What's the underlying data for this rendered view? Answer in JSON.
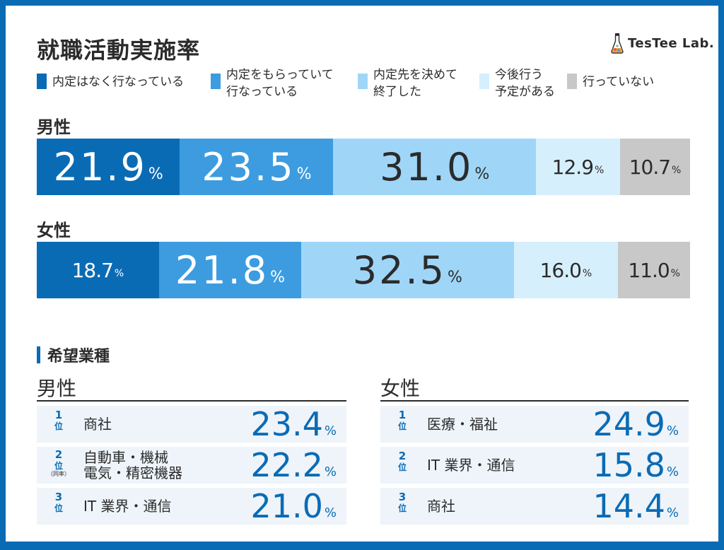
{
  "title": "就職活動実施率",
  "logo": {
    "text": "TesTee Lab.",
    "icon": "flask-icon"
  },
  "legend": [
    {
      "label": "内定はなく行なっている",
      "color": "#0a6bb5"
    },
    {
      "label": "内定をもらっていて\n行なっている",
      "color": "#3d9ce0"
    },
    {
      "label": "内定先を決めて\n終了した",
      "color": "#9fd6f8"
    },
    {
      "label": "今後行う\n予定がある",
      "color": "#d6effd"
    },
    {
      "label": "行っていない",
      "color": "#c8c8c8"
    }
  ],
  "chart_data": {
    "type": "bar",
    "orientation": "horizontal-stacked-100",
    "title": "就職活動実施率",
    "unit": "%",
    "categories": [
      "男性",
      "女性"
    ],
    "series": [
      {
        "name": "内定はなく行なっている",
        "values": [
          21.9,
          18.7
        ],
        "labels": [
          "21.9",
          "18.7"
        ]
      },
      {
        "name": "内定をもらっていて行なっている",
        "values": [
          23.5,
          21.8
        ],
        "labels": [
          "23.5",
          "21.8"
        ]
      },
      {
        "name": "内定先を決めて終了した",
        "values": [
          31.0,
          32.5
        ],
        "labels": [
          "31.0",
          "32.5"
        ]
      },
      {
        "name": "今後行う予定がある",
        "values": [
          12.9,
          16.0
        ],
        "labels": [
          "12.9",
          "16.0"
        ]
      },
      {
        "name": "行っていない",
        "values": [
          10.7,
          11.0
        ],
        "labels": [
          "10.7",
          "11.0"
        ]
      }
    ],
    "colors": [
      "#0a6bb5",
      "#3d9ce0",
      "#9fd6f8",
      "#d6effd",
      "#c8c8c8"
    ],
    "text_colors": [
      "#ffffff",
      "#ffffff",
      "#2b2b2b",
      "#2b2b2b",
      "#2b2b2b"
    ]
  },
  "percent_sign": "%",
  "wish": {
    "title": "希望業種",
    "rank_unit": "位",
    "male": {
      "label": "男性",
      "rows": [
        {
          "rank": "1",
          "industry": "商社",
          "value": "23.4"
        },
        {
          "rank": "2",
          "industry": "自動車・機械\n電気・精密機器",
          "value": "22.2",
          "note": "（同率）"
        },
        {
          "rank": "3",
          "industry": "IT 業界・通信",
          "value": "21.0"
        }
      ]
    },
    "female": {
      "label": "女性",
      "rows": [
        {
          "rank": "1",
          "industry": "医療・福祉",
          "value": "24.9"
        },
        {
          "rank": "2",
          "industry": "IT 業界・通信",
          "value": "15.8"
        },
        {
          "rank": "3",
          "industry": "商社",
          "value": "14.4"
        }
      ]
    }
  }
}
